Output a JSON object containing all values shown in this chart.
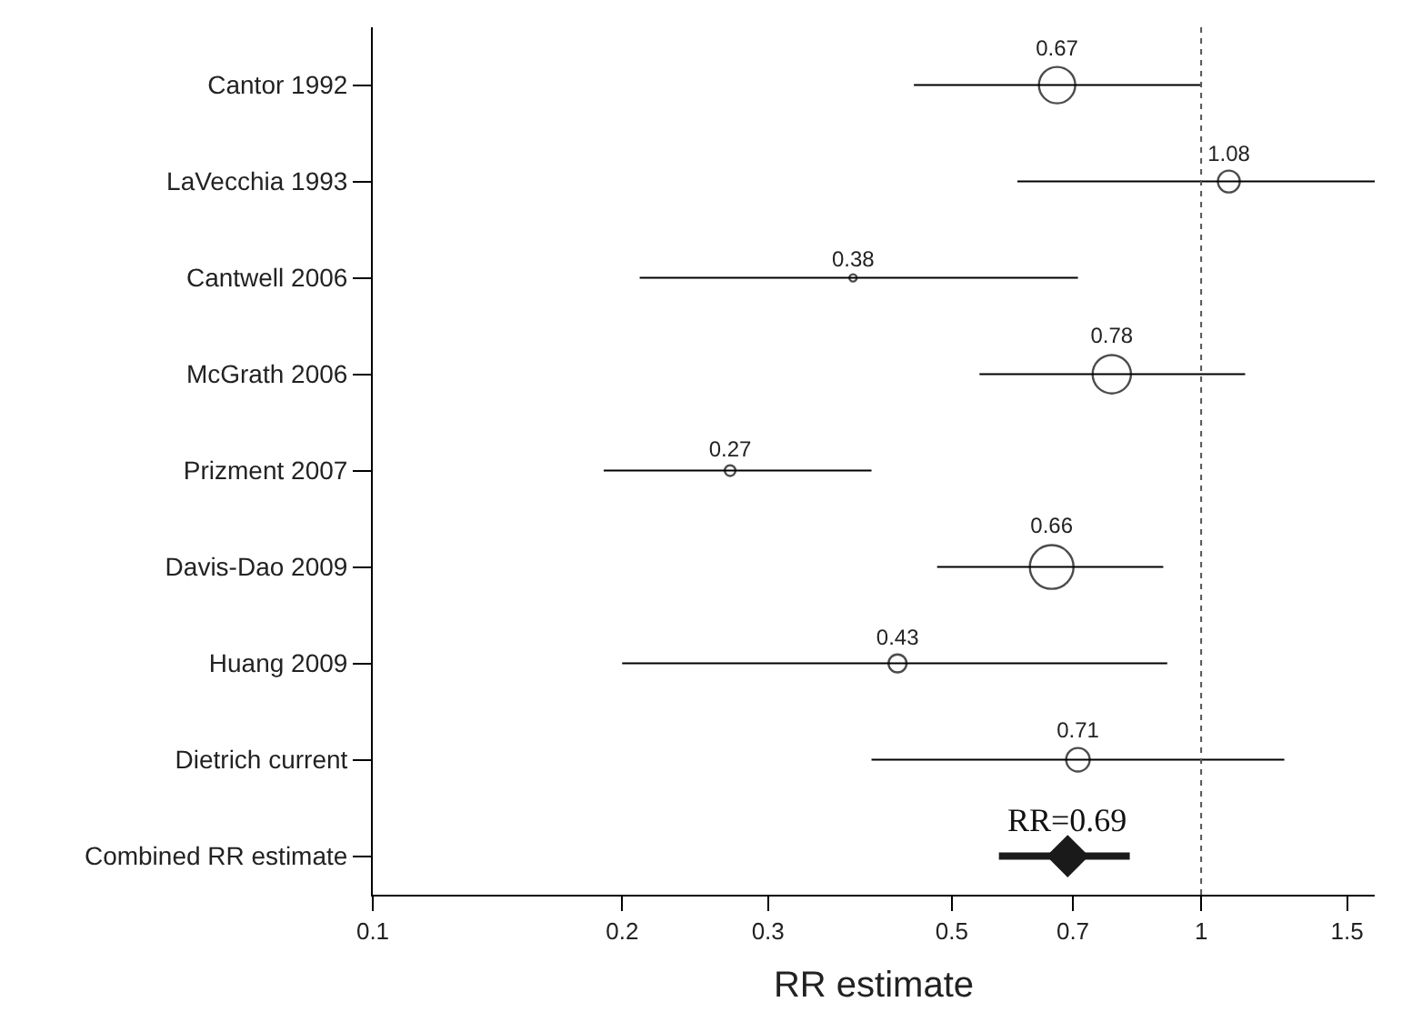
{
  "chart_data": {
    "type": "bubble",
    "orientation": "horizontal",
    "xlabel": "RR estimate",
    "categories": [
      "Cantor 1992",
      "LaVecchia 1993",
      "Cantwell 2006",
      "McGrath 2006",
      "Prizment 2007",
      "Davis-Dao 2009",
      "Huang 2009",
      "Dietrich current",
      "Combined RR estimate"
    ],
    "series": [
      {
        "color": "#000000",
        "values": [
          0.67,
          1.08,
          0.38,
          0.78,
          0.27,
          0.66,
          0.43,
          0.71,
          null
        ],
        "sizes": [
          0.69,
          0.25,
          0.016,
          0.77,
          0.06,
          1,
          0.17,
          0.29,
          null
        ],
        "errors": [
          [
            0.45,
            1.0
          ],
          [
            0.6,
            1.62
          ],
          [
            0.21,
            0.71
          ],
          [
            0.54,
            1.13
          ],
          [
            0.19,
            0.4
          ],
          [
            0.48,
            0.9
          ],
          [
            0.2,
            0.91
          ],
          [
            0.4,
            1.26
          ],
          null
        ],
        "value_labels": [
          "0.67",
          "1.08",
          "0.38",
          "0.78",
          "0.27",
          "0.66",
          "0.43",
          "0.71",
          null
        ]
      },
      {
        "type": "scatter",
        "marker": "diamond",
        "color": "#1a1a1a",
        "values": [
          null,
          null,
          null,
          null,
          null,
          null,
          null,
          null,
          0.69
        ],
        "errors": [
          null,
          null,
          null,
          null,
          null,
          null,
          null,
          null,
          [
            0.57,
            0.82
          ]
        ]
      }
    ],
    "annotations": [
      {
        "text": "RR=0.69",
        "x": 0.69,
        "y": "Combined RR estimate"
      }
    ],
    "ref_lines": [
      {
        "axis": "x",
        "value": 1,
        "line_style": "dotted",
        "color": "#555555"
      }
    ],
    "xlim": [
      0.1,
      1.62
    ],
    "xticks": [
      0.1,
      0.2,
      0.3,
      0.5,
      0.7,
      1,
      1.5
    ],
    "log": "x"
  }
}
